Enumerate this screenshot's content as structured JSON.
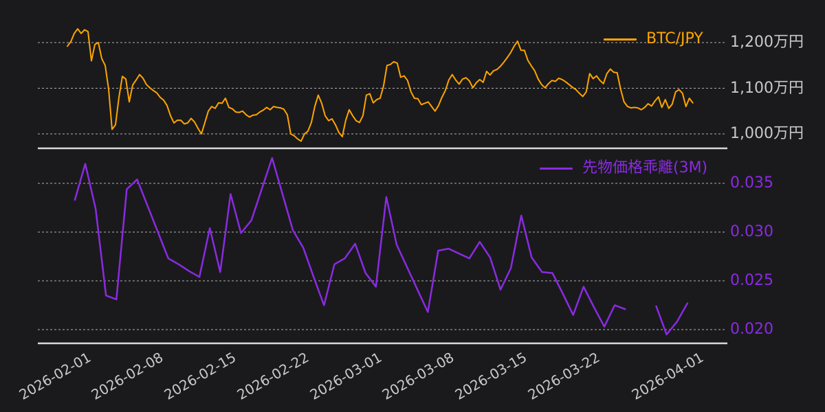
{
  "background_color": "#1a1a1c",
  "grid_color": "#cccccc",
  "axis_color": "#d9d9d9",
  "tick_text_color": "#c9c9c9",
  "chart_data": [
    {
      "type": "line",
      "panel": "top",
      "series_name": "BTC/JPY",
      "color": "#ffa500",
      "unit": "万円",
      "legend_position": "upper right",
      "grid": "dashed horizontal",
      "ylim": [
        975,
        1255
      ],
      "yticks": [
        {
          "value": 1200,
          "label": "1,200万円"
        },
        {
          "value": 1100,
          "label": "1,100万円"
        },
        {
          "value": 1000,
          "label": "1,000万円"
        }
      ],
      "x_epoch": "2026-02-01",
      "x_start_day": -1.72,
      "x_step_days": 0.331,
      "values": [
        1192,
        1202,
        1220,
        1230,
        1220,
        1228,
        1224,
        1160,
        1196,
        1200,
        1165,
        1150,
        1098,
        1010,
        1020,
        1080,
        1126,
        1120,
        1070,
        1107,
        1118,
        1130,
        1122,
        1108,
        1101,
        1095,
        1090,
        1080,
        1074,
        1062,
        1040,
        1024,
        1030,
        1030,
        1022,
        1024,
        1034,
        1026,
        1012,
        1000,
        1025,
        1050,
        1060,
        1056,
        1068,
        1067,
        1078,
        1058,
        1055,
        1048,
        1047,
        1050,
        1042,
        1037,
        1041,
        1042,
        1048,
        1052,
        1058,
        1053,
        1060,
        1058,
        1057,
        1054,
        1042,
        1000,
        996,
        989,
        984,
        1000,
        1006,
        1025,
        1060,
        1085,
        1067,
        1040,
        1029,
        1033,
        1020,
        1003,
        994,
        1030,
        1053,
        1040,
        1029,
        1025,
        1040,
        1085,
        1088,
        1068,
        1075,
        1078,
        1105,
        1150,
        1152,
        1158,
        1155,
        1124,
        1127,
        1117,
        1092,
        1078,
        1077,
        1064,
        1067,
        1070,
        1060,
        1050,
        1062,
        1080,
        1095,
        1118,
        1130,
        1118,
        1109,
        1120,
        1123,
        1116,
        1101,
        1112,
        1119,
        1113,
        1137,
        1129,
        1138,
        1141,
        1148,
        1157,
        1167,
        1178,
        1192,
        1203,
        1183,
        1183,
        1161,
        1149,
        1138,
        1120,
        1108,
        1101,
        1110,
        1117,
        1115,
        1122,
        1119,
        1114,
        1108,
        1102,
        1097,
        1089,
        1082,
        1092,
        1132,
        1121,
        1127,
        1117,
        1110,
        1132,
        1142,
        1135,
        1134,
        1098,
        1070,
        1060,
        1057,
        1058,
        1057,
        1053,
        1058,
        1066,
        1061,
        1072,
        1081,
        1058,
        1075,
        1056,
        1065,
        1092,
        1097,
        1089,
        1060,
        1078,
        1068
      ]
    },
    {
      "type": "line",
      "panel": "bottom",
      "series_name": "先物価格乖離(3M)",
      "color": "#8a2be2",
      "legend_position": "upper right",
      "grid": "dashed horizontal",
      "ylim": [
        0.0185,
        0.0385
      ],
      "yticks": [
        {
          "value": 0.035,
          "label": "0.035"
        },
        {
          "value": 0.03,
          "label": "0.030"
        },
        {
          "value": 0.025,
          "label": "0.025"
        },
        {
          "value": 0.02,
          "label": "0.020"
        }
      ],
      "x_epoch": "2026-02-01",
      "x_start_day": -1,
      "x_step_days": 1,
      "note": "null values = gap in line (missing data around 2026-03-25/26)",
      "values": [
        0.0333,
        0.037,
        0.0324,
        0.0235,
        0.0231,
        0.0344,
        0.0354,
        0.0327,
        0.03,
        0.0273,
        0.0267,
        0.026,
        0.0254,
        0.0304,
        0.0259,
        0.0339,
        0.0299,
        0.0312,
        0.0344,
        0.0376,
        0.0339,
        0.0302,
        0.0284,
        0.0254,
        0.0225,
        0.0267,
        0.0273,
        0.0288,
        0.0258,
        0.0244,
        0.0336,
        0.0287,
        0.0264,
        0.0241,
        0.0218,
        0.0281,
        0.0283,
        0.0278,
        0.0273,
        0.029,
        0.0274,
        0.0241,
        0.0263,
        0.0317,
        0.0274,
        0.0259,
        0.0258,
        0.0237,
        0.0215,
        0.0244,
        0.0223,
        0.0203,
        0.0225,
        0.0221,
        null,
        null,
        0.0224,
        0.0195,
        0.0208,
        0.0227
      ]
    }
  ],
  "x_axis": {
    "ticks": [
      {
        "day": 0,
        "label": "2026-02-01"
      },
      {
        "day": 7,
        "label": "2026-02-08"
      },
      {
        "day": 14,
        "label": "2026-02-15"
      },
      {
        "day": 21,
        "label": "2026-02-22"
      },
      {
        "day": 28,
        "label": "2026-03-01"
      },
      {
        "day": 35,
        "label": "2026-03-08"
      },
      {
        "day": 42,
        "label": "2026-03-15"
      },
      {
        "day": 49,
        "label": "2026-03-22"
      },
      {
        "day": 59,
        "label": "2026-04-01"
      }
    ]
  }
}
